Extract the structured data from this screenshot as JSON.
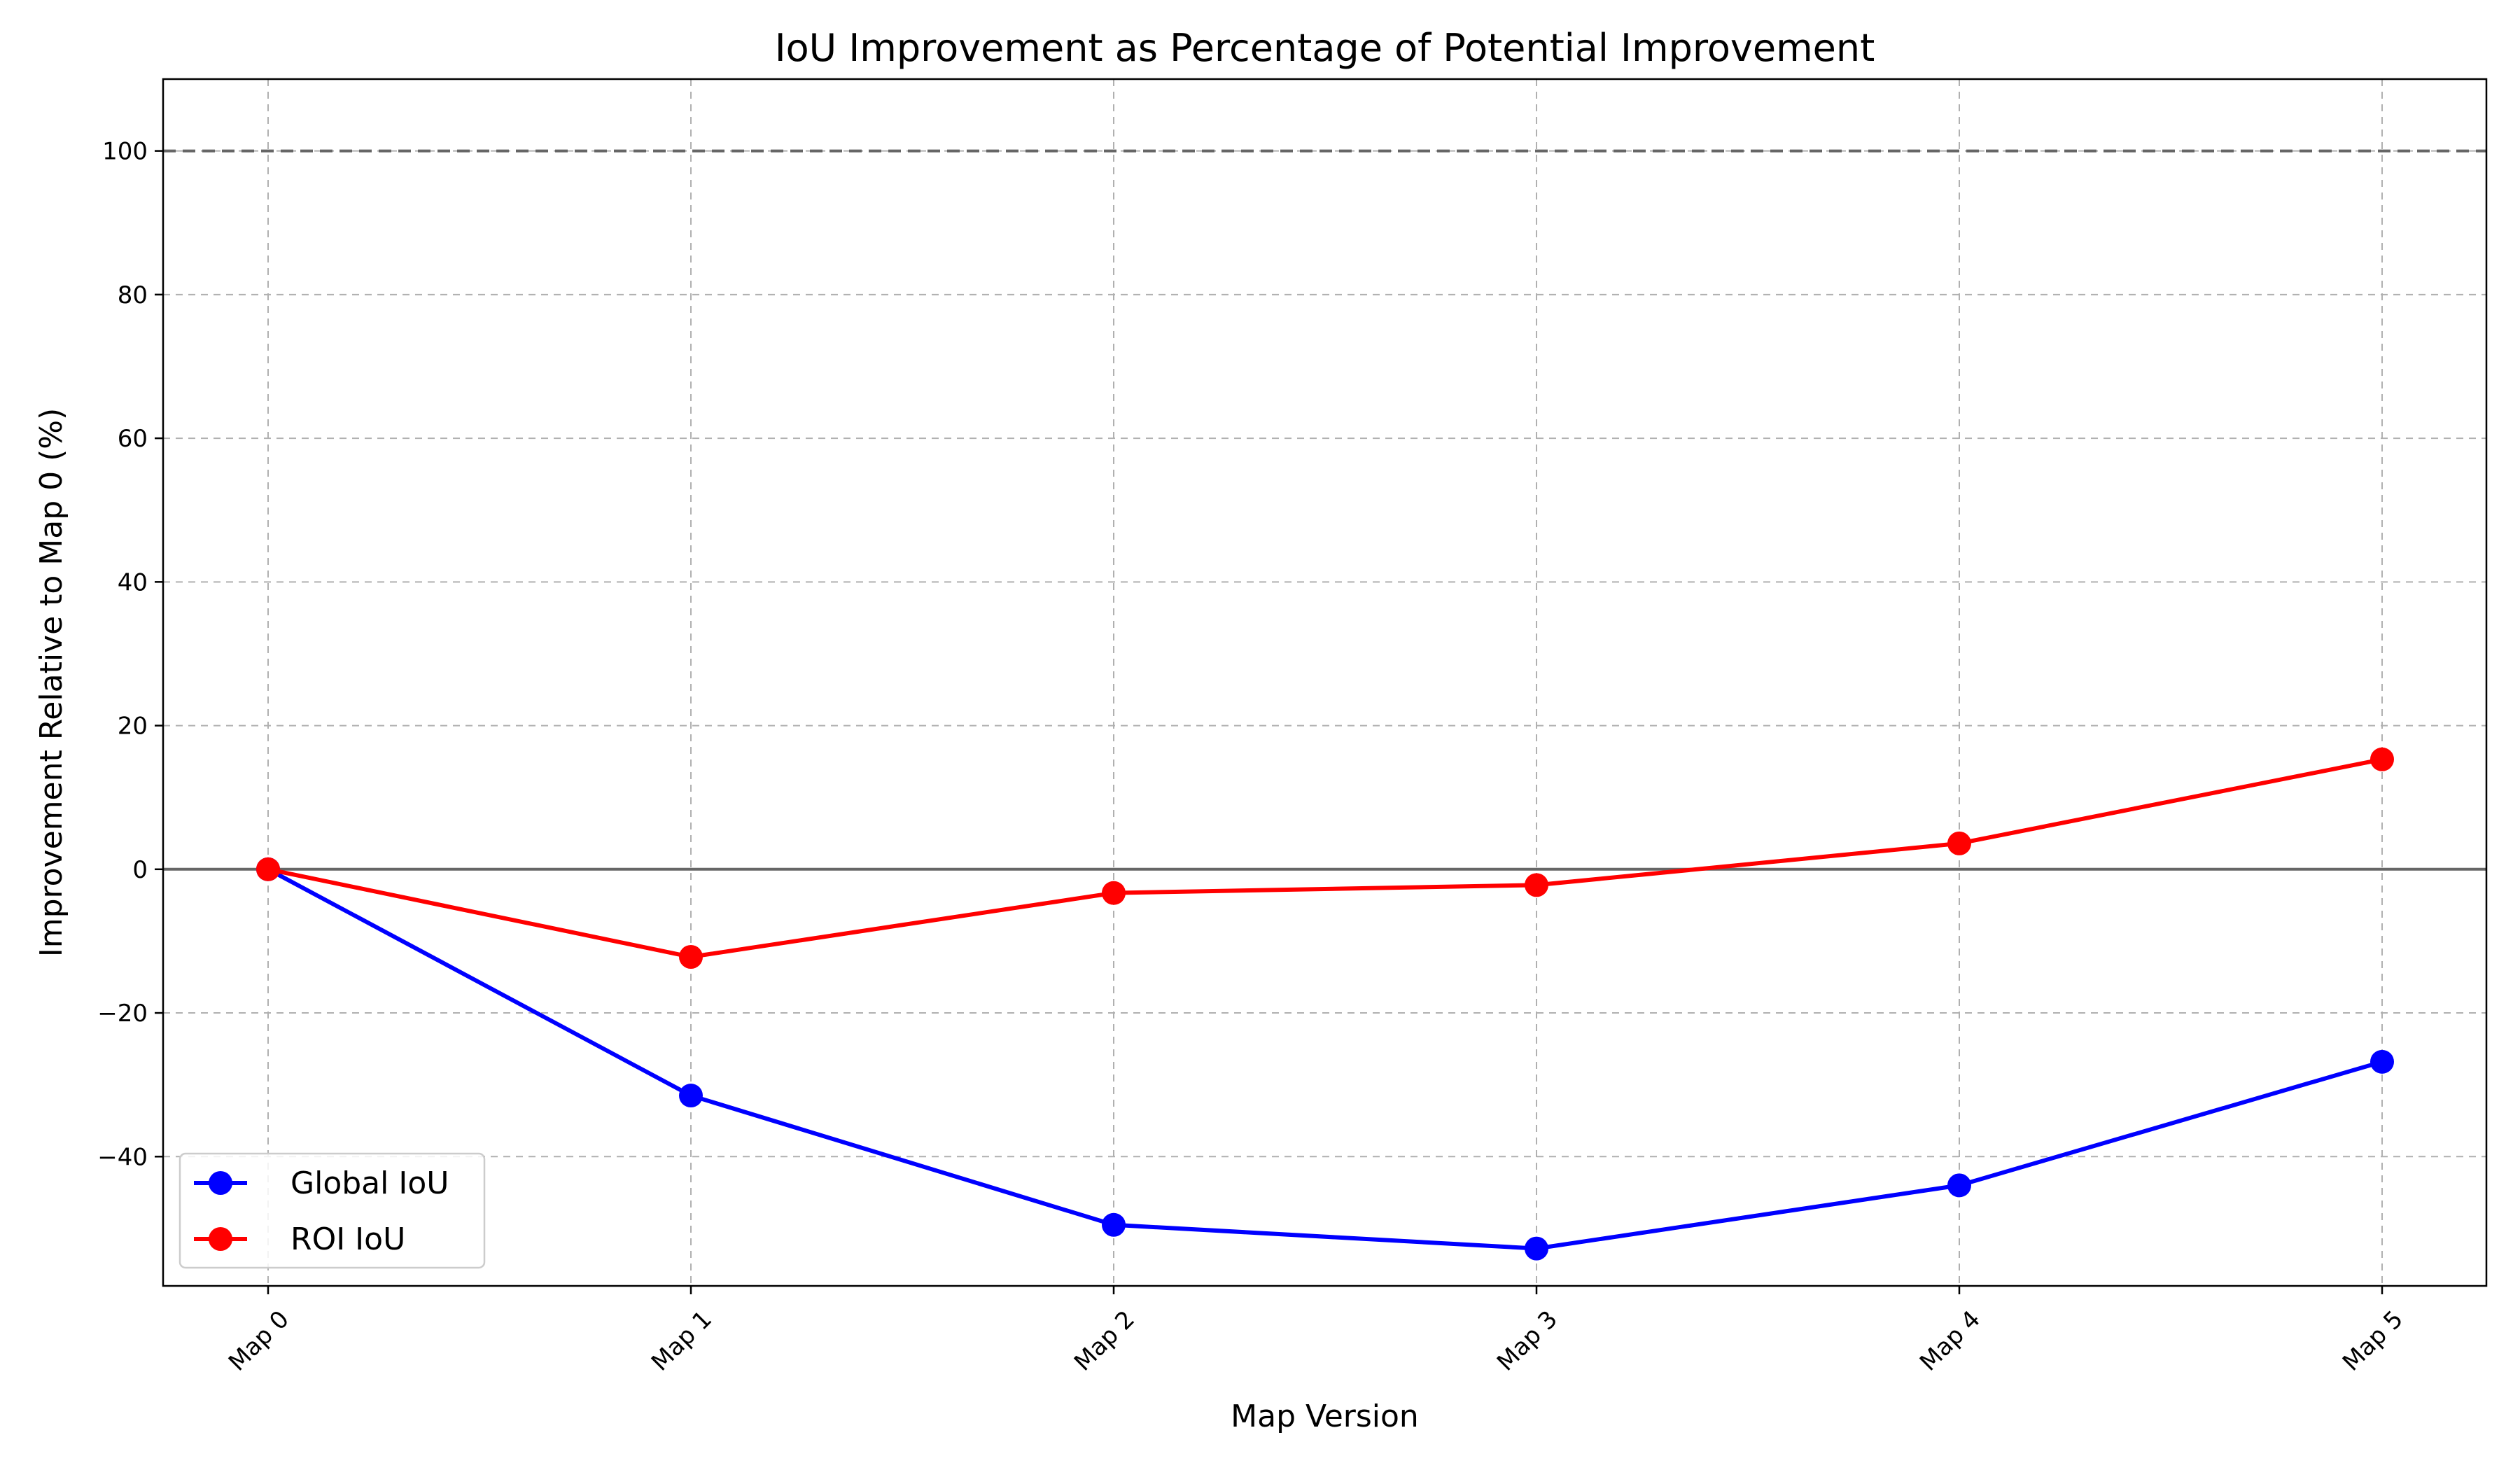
{
  "chart_data": {
    "type": "line",
    "title": "IoU Improvement as Percentage of Potential Improvement",
    "xlabel": "Map Version",
    "ylabel": "Improvement Relative to Map 0 (%)",
    "categories": [
      "Map 0",
      "Map 1",
      "Map 2",
      "Map 3",
      "Map 4",
      "Map 5"
    ],
    "series": [
      {
        "name": "Global IoU",
        "color": "#0000ff",
        "values": [
          0,
          -31.5,
          -49.5,
          -52.8,
          -44,
          -26.8
        ]
      },
      {
        "name": "ROI IoU",
        "color": "#ff0000",
        "values": [
          0,
          -12.2,
          -3.3,
          -2.2,
          3.6,
          15.3
        ]
      }
    ],
    "reference_lines": [
      {
        "y": 100,
        "style": "dashed",
        "color": "#666666"
      },
      {
        "y": 0,
        "style": "solid",
        "color": "#666666"
      }
    ],
    "yticks": [
      -40,
      -20,
      0,
      20,
      40,
      60,
      80,
      100
    ],
    "ylim": [
      -58,
      110
    ],
    "grid": true,
    "legend_position": "bottom-left"
  }
}
